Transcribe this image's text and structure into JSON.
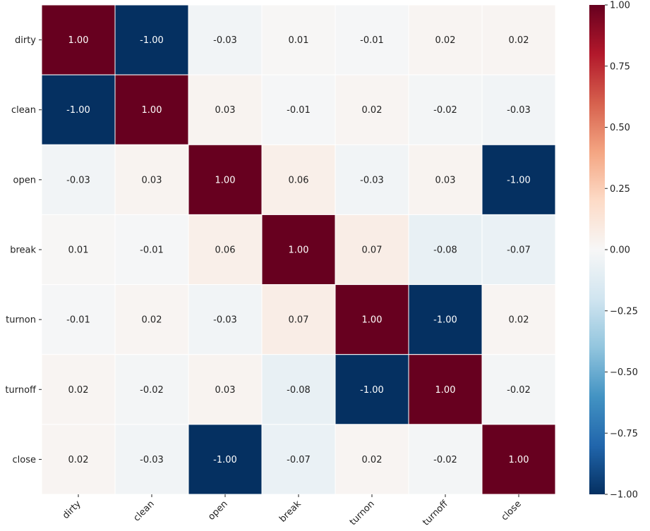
{
  "chart_data": {
    "type": "heatmap",
    "title": "",
    "row_labels": [
      "dirty",
      "clean",
      "open",
      "break",
      "turnon",
      "turnoff",
      "close"
    ],
    "col_labels": [
      "dirty",
      "clean",
      "open",
      "break",
      "turnon",
      "turnoff",
      "close"
    ],
    "values": [
      [
        1.0,
        -1.0,
        -0.03,
        0.01,
        -0.01,
        0.02,
        0.02
      ],
      [
        -1.0,
        1.0,
        0.03,
        -0.01,
        0.02,
        -0.02,
        -0.03
      ],
      [
        -0.03,
        0.03,
        1.0,
        0.06,
        -0.03,
        0.03,
        -1.0
      ],
      [
        0.01,
        -0.01,
        0.06,
        1.0,
        0.07,
        -0.08,
        -0.07
      ],
      [
        -0.01,
        0.02,
        -0.03,
        0.07,
        1.0,
        -1.0,
        0.02
      ],
      [
        0.02,
        -0.02,
        0.03,
        -0.08,
        -1.0,
        1.0,
        -0.02
      ],
      [
        0.02,
        -0.03,
        -1.0,
        -0.07,
        0.02,
        -0.02,
        1.0
      ]
    ],
    "colormap": "RdBu_r",
    "vmin": -1.0,
    "vmax": 1.0,
    "colorbar_ticks": [
      "1.00",
      "0.75",
      "0.50",
      "0.25",
      "0.00",
      "−0.25",
      "−0.50",
      "−0.75",
      "−1.00"
    ],
    "annotation_format": "0.00"
  }
}
